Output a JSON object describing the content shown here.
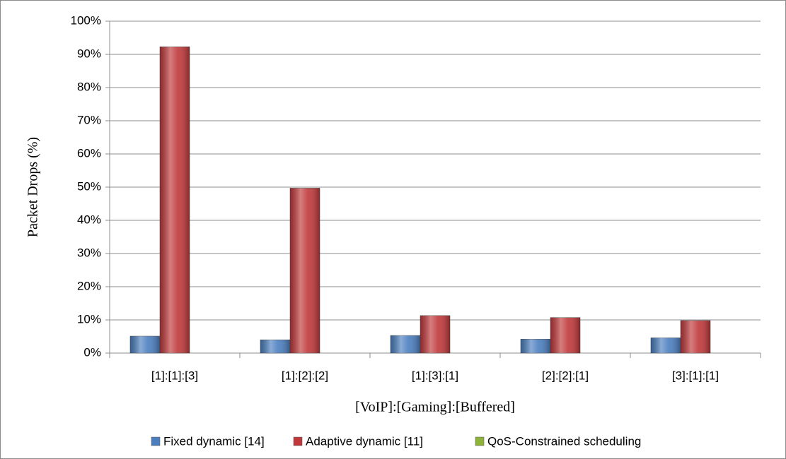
{
  "chart_data": {
    "type": "bar",
    "y_label": "Packet Drops (%)",
    "x_label": "[VoIP]:[Gaming]:[Buffered]",
    "categories": [
      "[1]:[1]:[3]",
      "[1]:[2]:[2]",
      "[1]:[3]:[1]",
      "[2]:[2]:[1]",
      "[3]:[1]:[1]"
    ],
    "series": [
      {
        "name": "Fixed dynamic [14]",
        "color": "#4a7ebf",
        "values": [
          5.1,
          4.0,
          5.3,
          4.2,
          4.6
        ]
      },
      {
        "name": "Adaptive dynamic [11]",
        "color": "#c0383a",
        "values": [
          92.3,
          49.7,
          11.3,
          10.7,
          9.8
        ]
      },
      {
        "name": "QoS-Constrained scheduling",
        "color": "#8db33a",
        "values": [
          0,
          0,
          0,
          0,
          0
        ]
      }
    ],
    "ylim": [
      0,
      100
    ],
    "yticks": [
      {
        "value": 0,
        "label": "0%"
      },
      {
        "value": 10,
        "label": "10%"
      },
      {
        "value": 20,
        "label": "20%"
      },
      {
        "value": 30,
        "label": "30%"
      },
      {
        "value": 40,
        "label": "40%"
      },
      {
        "value": 50,
        "label": "50%"
      },
      {
        "value": 60,
        "label": "60%"
      },
      {
        "value": 70,
        "label": "70%"
      },
      {
        "value": 80,
        "label": "80%"
      },
      {
        "value": 90,
        "label": "90%"
      },
      {
        "value": 100,
        "label": "100%"
      }
    ],
    "grid": true,
    "legend": "bottom"
  }
}
